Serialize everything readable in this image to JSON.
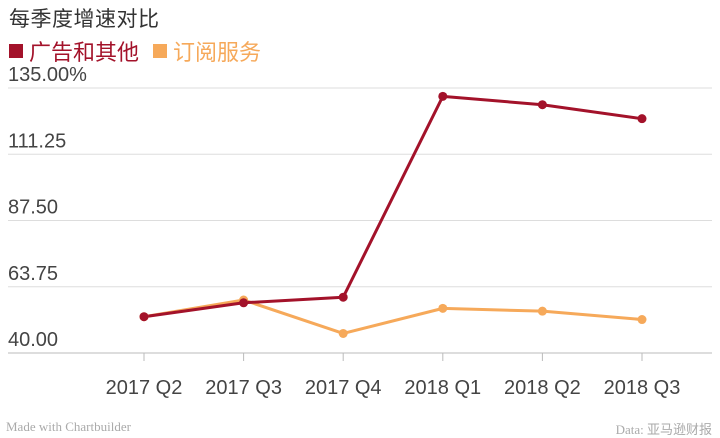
{
  "chart_data": {
    "type": "line",
    "title": "每季度增速对比",
    "categories": [
      "2017 Q2",
      "2017 Q3",
      "2017 Q4",
      "2018 Q1",
      "2018 Q2",
      "2018 Q3"
    ],
    "series": [
      {
        "name": "广告和其他",
        "color": "#a3122a",
        "values": [
          53,
          58,
          60,
          132,
          129,
          124
        ]
      },
      {
        "name": "订阅服务",
        "color": "#f6a95a",
        "values": [
          53,
          59,
          47,
          56,
          55,
          52
        ]
      }
    ],
    "yticks": [
      "40.00",
      "63.75",
      "87.50",
      "111.25",
      "135.00%"
    ],
    "ylim": [
      40,
      135
    ],
    "grid": true,
    "legend_position": "top-left"
  },
  "footer": {
    "left": "Made with Chartbuilder",
    "right": "Data: 亚马逊财报"
  }
}
